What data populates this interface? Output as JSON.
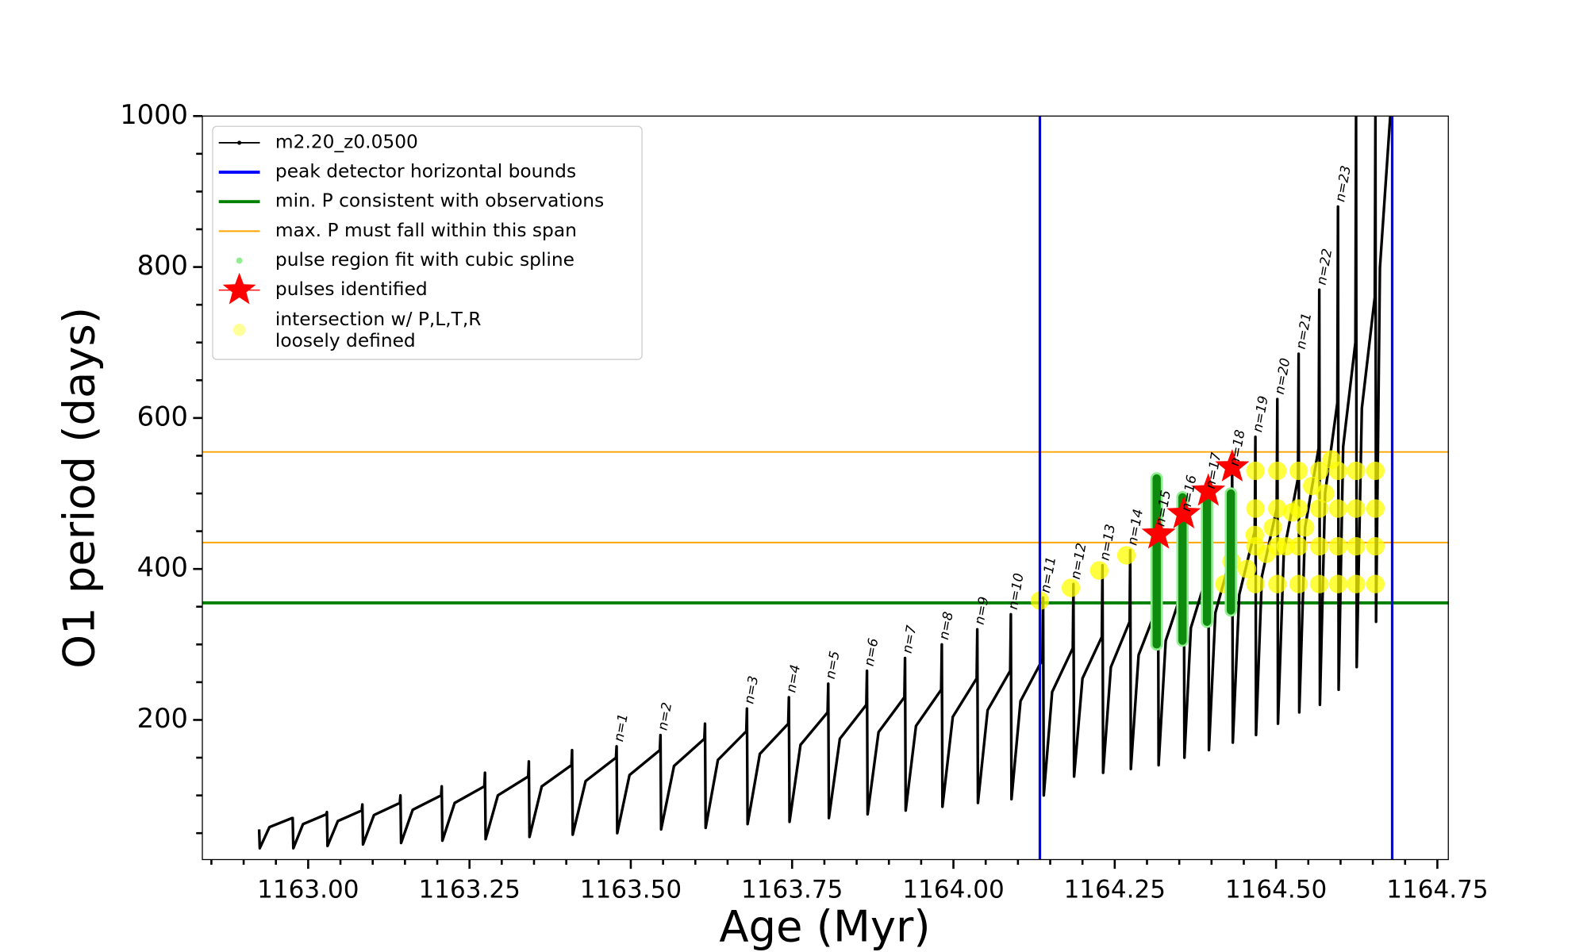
{
  "chart_data": {
    "type": "line",
    "x_label": "Age (Myr)",
    "y_label": "O1 period (days)",
    "xlim": [
      1162.836,
      1164.767
    ],
    "ylim": [
      15,
      1000
    ],
    "xticks": [
      {
        "value": 1163,
        "label": "1163.00"
      },
      {
        "value": 1163.25,
        "label": "1163.25"
      },
      {
        "value": 1163.5,
        "label": "1163.50"
      },
      {
        "value": 1163.75,
        "label": "1163.75"
      },
      {
        "value": 1164,
        "label": "1164.00"
      },
      {
        "value": 1164.25,
        "label": "1164.25"
      },
      {
        "value": 1164.5,
        "label": "1164.50"
      },
      {
        "value": 1164.75,
        "label": "1164.75"
      }
    ],
    "xminor": [
      1162.85,
      1162.9,
      1162.95,
      1163.05,
      1163.1,
      1163.15,
      1163.2,
      1163.3,
      1163.35,
      1163.4,
      1163.45,
      1163.55,
      1163.6,
      1163.65,
      1163.7,
      1163.8,
      1163.85,
      1163.9,
      1163.95,
      1164.05,
      1164.1,
      1164.15,
      1164.2,
      1164.3,
      1164.35,
      1164.4,
      1164.45,
      1164.55,
      1164.6,
      1164.65,
      1164.7
    ],
    "yticks": [
      200,
      400,
      600,
      800,
      1000
    ],
    "yminor": [
      50,
      100,
      150,
      250,
      300,
      350,
      450,
      500,
      550,
      650,
      700,
      750,
      850,
      900,
      950
    ],
    "legend": "upper left",
    "series": [
      {
        "name": "m2.20_z0.0500",
        "type": "line",
        "color": "#000000",
        "x": [
          1162.924,
          1162.925,
          1162.94,
          1162.975,
          1162.976,
          1162.977,
          1162.992,
          1163.028,
          1163.029,
          1163.03,
          1163.046,
          1163.083,
          1163.084,
          1163.085,
          1163.102,
          1163.142,
          1163.143,
          1163.144,
          1163.162,
          1163.206,
          1163.207,
          1163.208,
          1163.227,
          1163.273,
          1163.274,
          1163.275,
          1163.294,
          1163.341,
          1163.342,
          1163.343,
          1163.362,
          1163.408,
          1163.409,
          1163.41,
          1163.43,
          1163.477,
          1163.478,
          1163.479,
          1163.498,
          1163.545,
          1163.546,
          1163.547,
          1163.567,
          1163.614,
          1163.615,
          1163.616,
          1163.635,
          1163.679,
          1163.68,
          1163.681,
          1163.7,
          1163.744,
          1163.745,
          1163.746,
          1163.763,
          1163.805,
          1163.806,
          1163.807,
          1163.824,
          1163.865,
          1163.866,
          1163.867,
          1163.884,
          1163.924,
          1163.925,
          1163.926,
          1163.942,
          1163.981,
          1163.982,
          1163.983,
          1163.999,
          1164.036,
          1164.037,
          1164.038,
          1164.053,
          1164.088,
          1164.089,
          1164.09,
          1164.104,
          1164.138,
          1164.139,
          1164.14,
          1164.153,
          1164.185,
          1164.186,
          1164.187,
          1164.2,
          1164.23,
          1164.231,
          1164.232,
          1164.244,
          1164.273,
          1164.274,
          1164.275,
          1164.287,
          1164.316,
          1164.317,
          1164.318,
          1164.329,
          1164.356,
          1164.357,
          1164.358,
          1164.368,
          1164.394,
          1164.395,
          1164.396,
          1164.406,
          1164.431,
          1164.432,
          1164.433,
          1164.443,
          1164.467,
          1164.468,
          1164.469,
          1164.478,
          1164.501,
          1164.502,
          1164.503,
          1164.512,
          1164.534,
          1164.535,
          1164.536,
          1164.545,
          1164.566,
          1164.567,
          1164.568,
          1164.576,
          1164.595,
          1164.596,
          1164.597,
          1164.604,
          1164.623,
          1164.624,
          1164.625,
          1164.633,
          1164.653,
          1164.654,
          1164.655,
          1164.661,
          1164.677
        ],
        "values": [
          55,
          30,
          58,
          70,
          70,
          30,
          62,
          75,
          78,
          33,
          66,
          80,
          88,
          35,
          74,
          90,
          100,
          37,
          81,
          100,
          112,
          40,
          90,
          112,
          130,
          42,
          100,
          125,
          145,
          45,
          112,
          140,
          160,
          48,
          119,
          150,
          165,
          50,
          127,
          160,
          180,
          55,
          139,
          175,
          195,
          57,
          147,
          185,
          215,
          62,
          155,
          195,
          230,
          65,
          167,
          210,
          248,
          70,
          175,
          220,
          265,
          75,
          184,
          230,
          282,
          80,
          192,
          240,
          300,
          85,
          204,
          255,
          320,
          90,
          213,
          265,
          340,
          95,
          225,
          280,
          362,
          100,
          237,
          295,
          380,
          125,
          255,
          310,
          405,
          130,
          270,
          330,
          425,
          135,
          286,
          350,
          450,
          140,
          305,
          375,
          470,
          150,
          322,
          395,
          500,
          160,
          342,
          420,
          530,
          170,
          366,
          450,
          575,
          180,
          390,
          480,
          625,
          195,
          422,
          520,
          685,
          210,
          455,
          560,
          770,
          220,
          500,
          620,
          880,
          240,
          562,
          700,
          1000,
          270,
          613,
          760,
          1000,
          330,
          799,
          1000
        ]
      },
      {
        "name": "peak detector horizontal bounds",
        "type": "vline",
        "color": "#0000ff",
        "x": [
          1164.134,
          1164.68
        ]
      },
      {
        "name": "min. P consistent with observations",
        "type": "hline",
        "color": "#008000",
        "values": [
          355
        ]
      },
      {
        "name": "max. P must fall within this span",
        "type": "hline",
        "color": "#ffa500",
        "values": [
          555,
          435
        ]
      },
      {
        "name": "pulse region fit with cubic spline",
        "type": "range",
        "color": "#90ee90",
        "line_color": "#008000",
        "x": [
          1164.315,
          1164.355,
          1164.393,
          1164.43
        ],
        "low": [
          300,
          305,
          330,
          345
        ],
        "high": [
          520,
          495,
          500,
          500
        ]
      },
      {
        "name": "pulses identified",
        "type": "star",
        "color": "#ff0000",
        "x": [
          1164.318,
          1164.357,
          1164.395,
          1164.432
        ],
        "values": [
          446,
          473,
          503,
          535
        ]
      },
      {
        "name": [
          "intersection w/ P,L,T,R",
          "loosely defined"
        ],
        "type": "scatter",
        "color": "#ffff00",
        "x": [
          1164.134,
          1164.182,
          1164.226,
          1164.268,
          1164.42,
          1164.431,
          1164.455,
          1164.467,
          1164.485,
          1164.495,
          1164.515,
          1164.525,
          1164.545,
          1164.556,
          1164.576,
          1164.586,
          1164.468,
          1164.468,
          1164.468,
          1164.468,
          1164.502,
          1164.502,
          1164.502,
          1164.502,
          1164.535,
          1164.535,
          1164.535,
          1164.535,
          1164.567,
          1164.567,
          1164.567,
          1164.567,
          1164.596,
          1164.596,
          1164.596,
          1164.596,
          1164.624,
          1164.624,
          1164.624,
          1164.624,
          1164.654,
          1164.654,
          1164.654,
          1164.654
        ],
        "values": [
          358,
          375,
          398,
          418,
          380,
          410,
          400,
          445,
          420,
          455,
          430,
          475,
          455,
          510,
          500,
          545,
          380,
          430,
          480,
          530,
          380,
          430,
          480,
          530,
          380,
          430,
          480,
          530,
          380,
          430,
          480,
          530,
          380,
          430,
          480,
          530,
          380,
          430,
          480,
          530,
          380,
          430,
          480,
          530
        ]
      }
    ],
    "annotations": [
      {
        "text": "n=1",
        "x": 1163.478,
        "y": 165
      },
      {
        "text": "n=2",
        "x": 1163.546,
        "y": 180
      },
      {
        "text": "n=3",
        "x": 1163.68,
        "y": 215
      },
      {
        "text": "n=4",
        "x": 1163.745,
        "y": 230
      },
      {
        "text": "n=5",
        "x": 1163.806,
        "y": 248
      },
      {
        "text": "n=6",
        "x": 1163.866,
        "y": 265
      },
      {
        "text": "n=7",
        "x": 1163.925,
        "y": 282
      },
      {
        "text": "n=8",
        "x": 1163.982,
        "y": 300
      },
      {
        "text": "n=9",
        "x": 1164.037,
        "y": 320
      },
      {
        "text": "n=10",
        "x": 1164.089,
        "y": 340
      },
      {
        "text": "n=11",
        "x": 1164.139,
        "y": 362
      },
      {
        "text": "n=12",
        "x": 1164.186,
        "y": 380
      },
      {
        "text": "n=13",
        "x": 1164.231,
        "y": 405
      },
      {
        "text": "n=14",
        "x": 1164.274,
        "y": 425
      },
      {
        "text": "n=15",
        "x": 1164.317,
        "y": 450
      },
      {
        "text": "n=16",
        "x": 1164.357,
        "y": 470
      },
      {
        "text": "n=17",
        "x": 1164.395,
        "y": 500
      },
      {
        "text": "n=18",
        "x": 1164.432,
        "y": 530
      },
      {
        "text": "n=19",
        "x": 1164.468,
        "y": 575
      },
      {
        "text": "n=20",
        "x": 1164.502,
        "y": 625
      },
      {
        "text": "n=21",
        "x": 1164.535,
        "y": 685
      },
      {
        "text": "n=22",
        "x": 1164.567,
        "y": 770
      },
      {
        "text": "n=23",
        "x": 1164.596,
        "y": 880
      }
    ]
  }
}
